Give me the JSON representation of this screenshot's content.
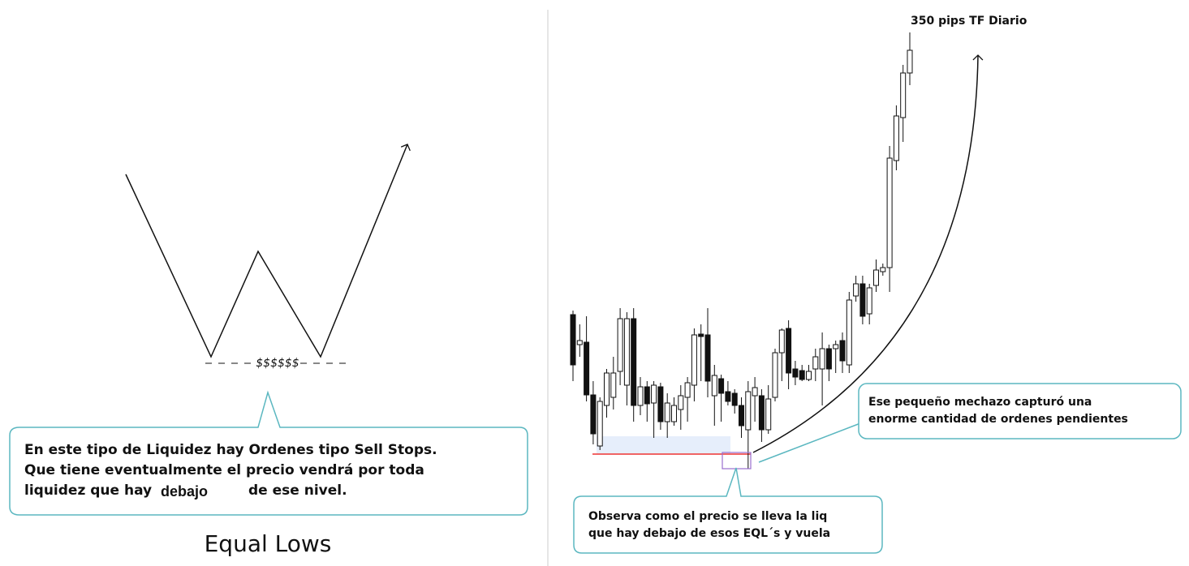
{
  "left": {
    "money": "$$$$$$",
    "callout": {
      "line1": "En este tipo de Liquidez hay Ordenes tipo Sell Stops.",
      "line2": "Que tiene eventualmente el precio vendrá por toda",
      "line3a": "liquidez que hay",
      "line3b": "debajo",
      "line3c": "de ese nivel."
    },
    "title": "Equal Lows"
  },
  "right": {
    "heading": "350 pips TF Diario",
    "callout_right": {
      "line1": "Ese pequeño mechazo capturó una",
      "line2": "enorme cantidad de ordenes pendientes"
    },
    "callout_bottom": {
      "line1": "Observa como el precio se lleva la liq",
      "line2": "que hay debajo de esos EQL´s y vuela"
    }
  }
}
